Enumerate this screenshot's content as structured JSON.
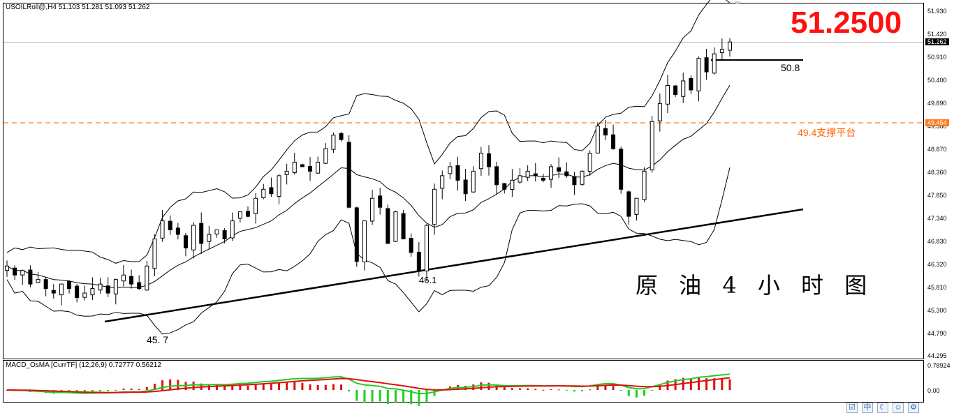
{
  "chart_title": "USOILRoll@,H4  51.103 51.281 51.093 51.262",
  "macd_title": "MACD_OsMA [CurrTF] (12,26,9) 0.72777 0.56212",
  "big_price": "51.2500",
  "chinese_title": "原 油 4 小 时 图",
  "annotations": {
    "resistance": "50.8",
    "support_platform": "49.4支撑平台",
    "low_1": "45. 7",
    "low_2": "46.1"
  },
  "price_axis": {
    "ticks": [
      "51.930",
      "51.420",
      "50.910",
      "50.400",
      "49.890",
      "49.380",
      "48.870",
      "48.360",
      "47.850",
      "47.340",
      "46.830",
      "46.320",
      "45.810",
      "45.300",
      "44.790",
      "44.295"
    ],
    "current_price_tag": "51.262",
    "support_tag": "49.454"
  },
  "macd_axis": {
    "ticks": [
      "0.78924",
      "0.00"
    ]
  },
  "toolbar_icons": [
    "checkbox-icon",
    "chinese-input-icon",
    "moon-icon",
    "smiley-icon",
    "settings-icon"
  ],
  "colors": {
    "bull": "#ffffff",
    "bear": "#000000",
    "support": "#ff7a1a",
    "big_price": "#ff1010",
    "macd_line": "#22cc22",
    "signal_line": "#dd1111",
    "hist_pos": "#dd1111",
    "hist_neg": "#22cc22"
  },
  "chart_data": {
    "type": "candlestick",
    "symbol": "USOILRoll@",
    "timeframe": "H4",
    "ylim": [
      44.295,
      51.93
    ],
    "open": 51.103,
    "high": 51.281,
    "low": 51.093,
    "close": 51.262,
    "support_level": 49.454,
    "resistance_level": 50.8,
    "trendline": {
      "from": 45.7,
      "to": 47.55
    },
    "closes": [
      46.3,
      46.1,
      46.2,
      45.9,
      46.0,
      45.8,
      45.7,
      45.9,
      45.8,
      45.6,
      45.7,
      45.8,
      45.9,
      45.7,
      46.0,
      46.1,
      45.9,
      45.8,
      46.3,
      46.9,
      47.3,
      47.1,
      47.0,
      46.7,
      47.2,
      46.8,
      47.0,
      47.1,
      46.9,
      47.3,
      47.5,
      47.4,
      47.8,
      48.0,
      47.9,
      48.3,
      48.4,
      48.6,
      48.5,
      48.4,
      48.6,
      48.9,
      49.2,
      49.1,
      47.6,
      46.4,
      47.3,
      47.8,
      47.6,
      46.8,
      47.5,
      46.9,
      46.6,
      46.2,
      47.2,
      48.0,
      48.3,
      48.5,
      48.2,
      47.9,
      48.4,
      48.8,
      48.5,
      48.1,
      48.0,
      48.2,
      48.3,
      48.4,
      48.3,
      48.2,
      48.5,
      48.4,
      48.3,
      48.1,
      48.4,
      48.8,
      49.4,
      49.2,
      48.9,
      48.0,
      47.4,
      47.8,
      48.4,
      49.5,
      49.9,
      50.3,
      50.1,
      50.4,
      50.2,
      50.9,
      50.6,
      51.0,
      51.1,
      51.262
    ]
  }
}
